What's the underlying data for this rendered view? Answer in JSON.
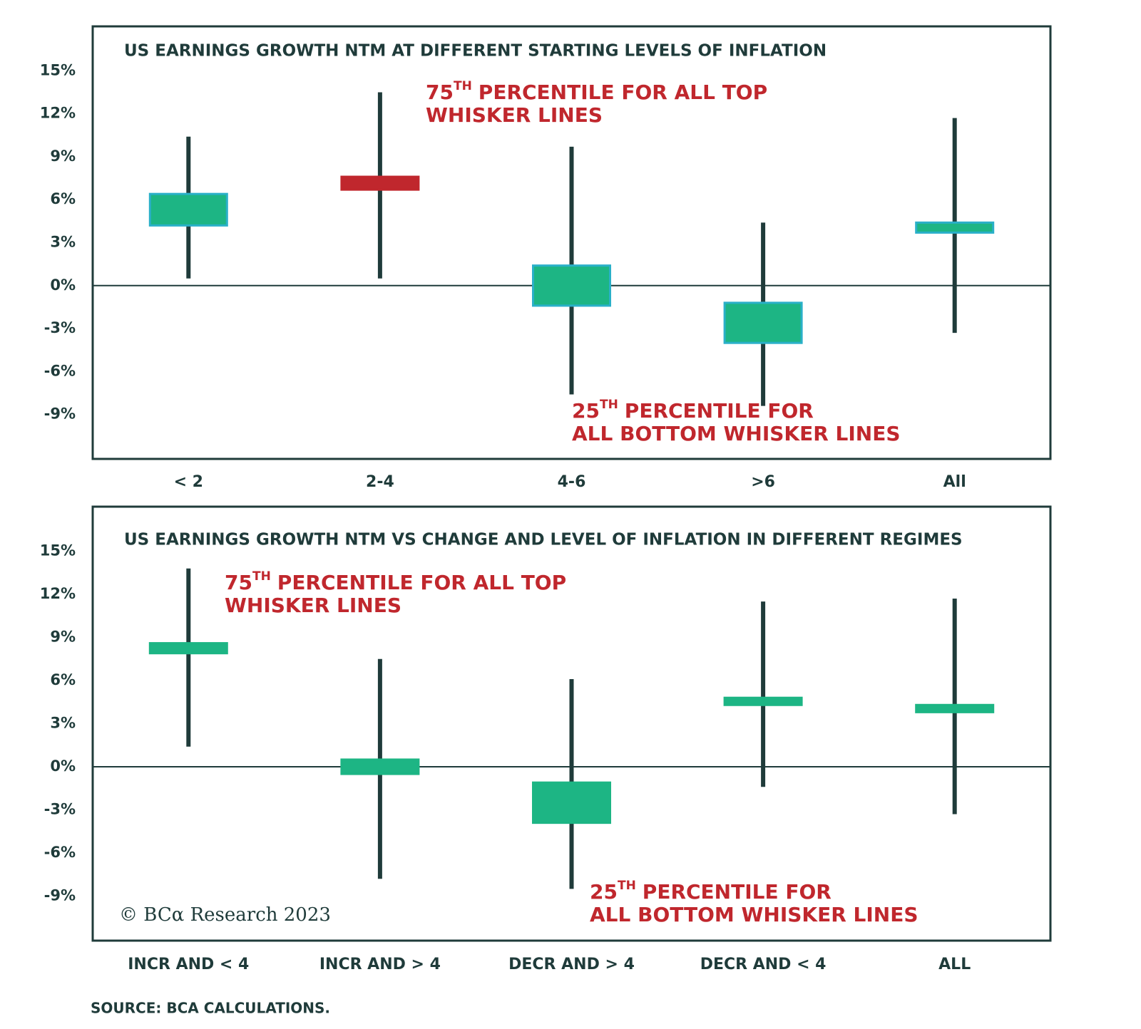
{
  "chart_data": [
    {
      "type": "box",
      "title": "US EARNINGS GROWTH NTM AT DIFFERENT STARTING LEVELS OF INFLATION",
      "categories": [
        "< 2",
        "2-4",
        "4-6",
        ">6",
        "All"
      ],
      "whisker_high": [
        10.4,
        13.5,
        9.7,
        4.4,
        11.7
      ],
      "box_high": [
        6.4,
        7.6,
        1.4,
        -1.2,
        4.4
      ],
      "box_low": [
        4.2,
        6.7,
        -1.4,
        -4.0,
        3.7
      ],
      "whisker_low": [
        0.5,
        0.5,
        -7.6,
        -8.4,
        -3.3
      ],
      "colors": [
        "#1db584",
        "#c0272d",
        "#1db584",
        "#1db584",
        "#1db584"
      ],
      "edgecolors": [
        "#2ab0c8",
        "#c0272d",
        "#2ab0c8",
        "#2ab0c8",
        "#2ab0c8"
      ],
      "whisker_color": "#1f3b3a",
      "ylim": [
        -12.1,
        18.1
      ],
      "yticks": [
        {
          "value": -9,
          "label": "-9%"
        },
        {
          "value": -6,
          "label": "-6%"
        },
        {
          "value": -3,
          "label": "-3%"
        },
        {
          "value": 0,
          "label": "0%"
        },
        {
          "value": 3,
          "label": "3%"
        },
        {
          "value": 6,
          "label": "6%"
        },
        {
          "value": 9,
          "label": "9%"
        },
        {
          "value": 12,
          "label": "12%"
        },
        {
          "value": 15,
          "label": "15%"
        }
      ],
      "zero_line": true,
      "annotations": [
        {
          "lines": [
            [
              "75",
              "TH",
              "PERCENTILE FOR ALL TOP"
            ],
            [
              "WHISKER LINES"
            ]
          ],
          "color": "#c0272d"
        },
        {
          "lines": [
            [
              "25",
              "TH",
              "PERCENTILE FOR"
            ],
            [
              "ALL BOTTOM WHISKER LINES"
            ]
          ],
          "color": "#c0272d"
        }
      ]
    },
    {
      "type": "box",
      "title": "US EARNINGS GROWTH NTM VS CHANGE AND LEVEL OF INFLATION IN DIFFERENT REGIMES",
      "categories": [
        "INCR AND < 4",
        "INCR AND > 4",
        "DECR AND > 4",
        "DECR AND < 4",
        "ALL"
      ],
      "whisker_high": [
        13.8,
        7.5,
        6.1,
        11.5,
        11.7
      ],
      "box_high": [
        8.6,
        0.5,
        -1.1,
        4.8,
        4.3
      ],
      "box_low": [
        7.9,
        -0.5,
        -3.9,
        4.3,
        3.8
      ],
      "whisker_low": [
        1.4,
        -7.8,
        -8.5,
        -1.4,
        -3.3
      ],
      "color": "#1db584",
      "whisker_color": "#1f3b3a",
      "ylim": [
        -12.1,
        18.1
      ],
      "yticks": [
        {
          "value": -9,
          "label": "-9%"
        },
        {
          "value": -6,
          "label": "-6%"
        },
        {
          "value": -3,
          "label": "-3%"
        },
        {
          "value": 0,
          "label": "0%"
        },
        {
          "value": 3,
          "label": "3%"
        },
        {
          "value": 6,
          "label": "6%"
        },
        {
          "value": 9,
          "label": "9%"
        },
        {
          "value": 12,
          "label": "12%"
        },
        {
          "value": 15,
          "label": "15%"
        }
      ],
      "zero_line": true,
      "annotations": [
        {
          "lines": [
            [
              "75",
              "TH",
              "PERCENTILE FOR ALL TOP"
            ],
            [
              "WHISKER LINES"
            ]
          ],
          "color": "#c0272d"
        },
        {
          "lines": [
            [
              "25",
              "TH",
              "PERCENTILE FOR"
            ],
            [
              "ALL BOTTOM WHISKER LINES"
            ]
          ],
          "color": "#c0272d"
        }
      ],
      "copyright": "© BCα Research 2023"
    }
  ],
  "source": "SOURCE: BCA CALCULATIONS."
}
